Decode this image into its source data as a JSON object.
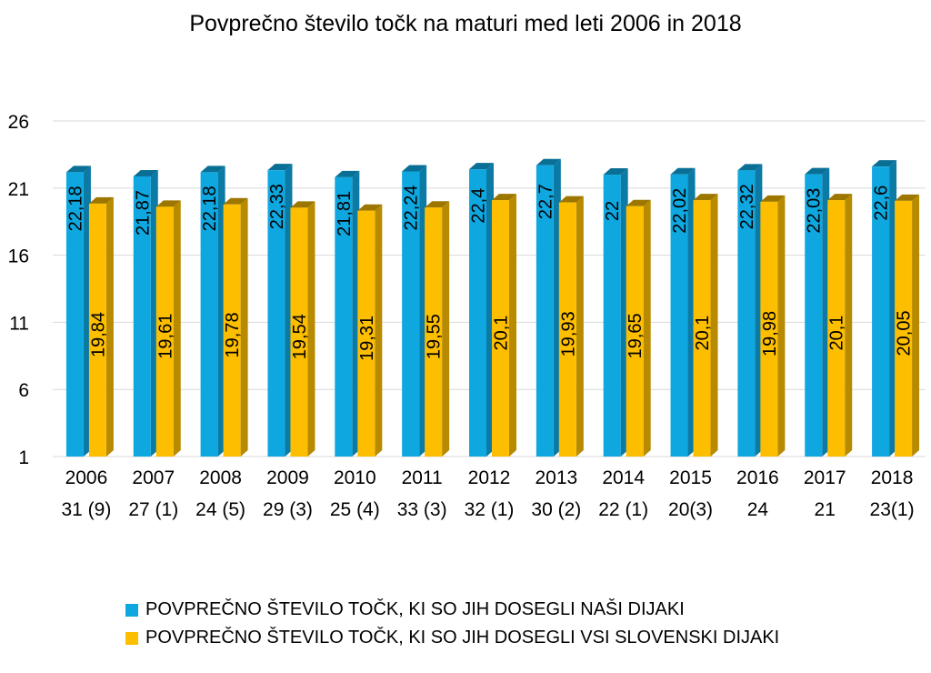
{
  "colors": {
    "series_front": [
      "#0fa7e0",
      "#fdbe00"
    ],
    "series_side": [
      "#0b7aa5",
      "#b78a00"
    ],
    "series_top": [
      "#0a6f95",
      "#9d7600"
    ],
    "grid": "#d9d9d9",
    "background": "#ffffff"
  },
  "chart_data": {
    "type": "bar",
    "title": "Povprečno število točk na maturi med leti 2006 in 2018",
    "categories": [
      "2006",
      "2007",
      "2008",
      "2009",
      "2010",
      "2011",
      "2012",
      "2013",
      "2014",
      "2015",
      "2016",
      "2017",
      "2018"
    ],
    "category_sublabels": [
      "31 (9)",
      "27 (1)",
      "24 (5)",
      "29 (3)",
      "25 (4)",
      "33 (3)",
      "32 (1)",
      "30 (2)",
      "22 (1)",
      "20(3)",
      "24",
      "21",
      "23(1)"
    ],
    "series": [
      {
        "name": "POVPREČNO ŠTEVILO TOČK, KI SO JIH DOSEGLI NAŠI DIJAKI",
        "values": [
          22.18,
          21.87,
          22.18,
          22.33,
          21.81,
          22.24,
          22.4,
          22.7,
          22,
          22.02,
          22.32,
          22.03,
          22.6
        ],
        "data_labels": [
          "22,18",
          "21,87",
          "22,18",
          "22,33",
          "21,81",
          "22,24",
          "22,4",
          "22,7",
          "22",
          "22,02",
          "22,32",
          "22,03",
          "22,6"
        ]
      },
      {
        "name": "POVPREČNO ŠTEVILO TOČK, KI SO JIH DOSEGLI VSI SLOVENSKI DIJAKI",
        "values": [
          19.84,
          19.61,
          19.78,
          19.54,
          19.31,
          19.55,
          20.1,
          19.93,
          19.65,
          20.1,
          19.98,
          20.1,
          20.05
        ],
        "data_labels": [
          "19,84",
          "19,61",
          "19,78",
          "19,54",
          "19,31",
          "19,55",
          "20,1",
          "19,93",
          "19,65",
          "20,1",
          "19,98",
          "20,1",
          "20,05"
        ]
      }
    ],
    "ylim": [
      1,
      26
    ],
    "yticks": [
      "1",
      "6",
      "11",
      "16",
      "21",
      "26"
    ],
    "grid": true,
    "legend": "bottom-left",
    "style": "3d-column"
  }
}
